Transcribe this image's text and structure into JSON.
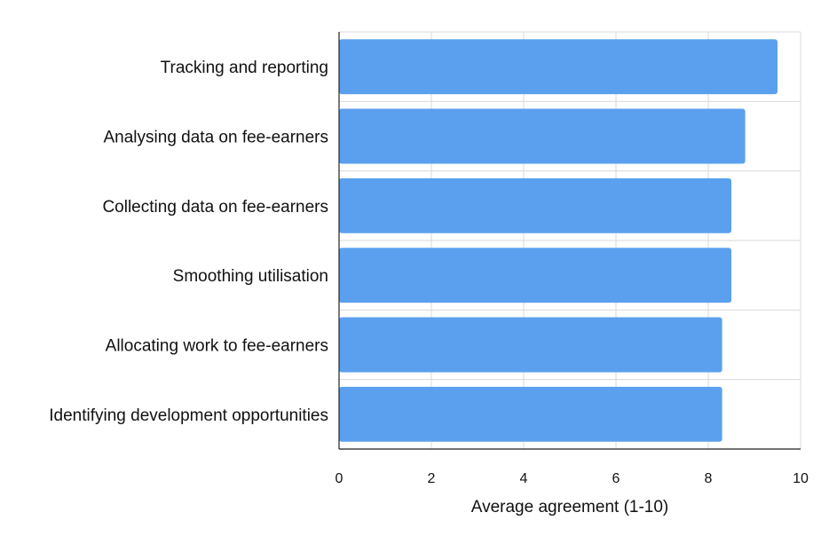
{
  "chart_data": {
    "type": "bar",
    "orientation": "horizontal",
    "categories": [
      "Tracking and reporting",
      "Analysing data on fee-earners",
      "Collecting data on fee-earners",
      "Smoothing utilisation",
      "Allocating work to fee-earners",
      "Identifying development opportunities"
    ],
    "values": [
      9.5,
      8.8,
      8.5,
      8.5,
      8.3,
      8.3
    ],
    "xlabel": "Average agreement (1-10)",
    "xlim": [
      0,
      10
    ],
    "xticks": [
      "0",
      "2",
      "4",
      "6",
      "8",
      "10"
    ],
    "grid": true,
    "bar_color": "#5ba0ef"
  }
}
